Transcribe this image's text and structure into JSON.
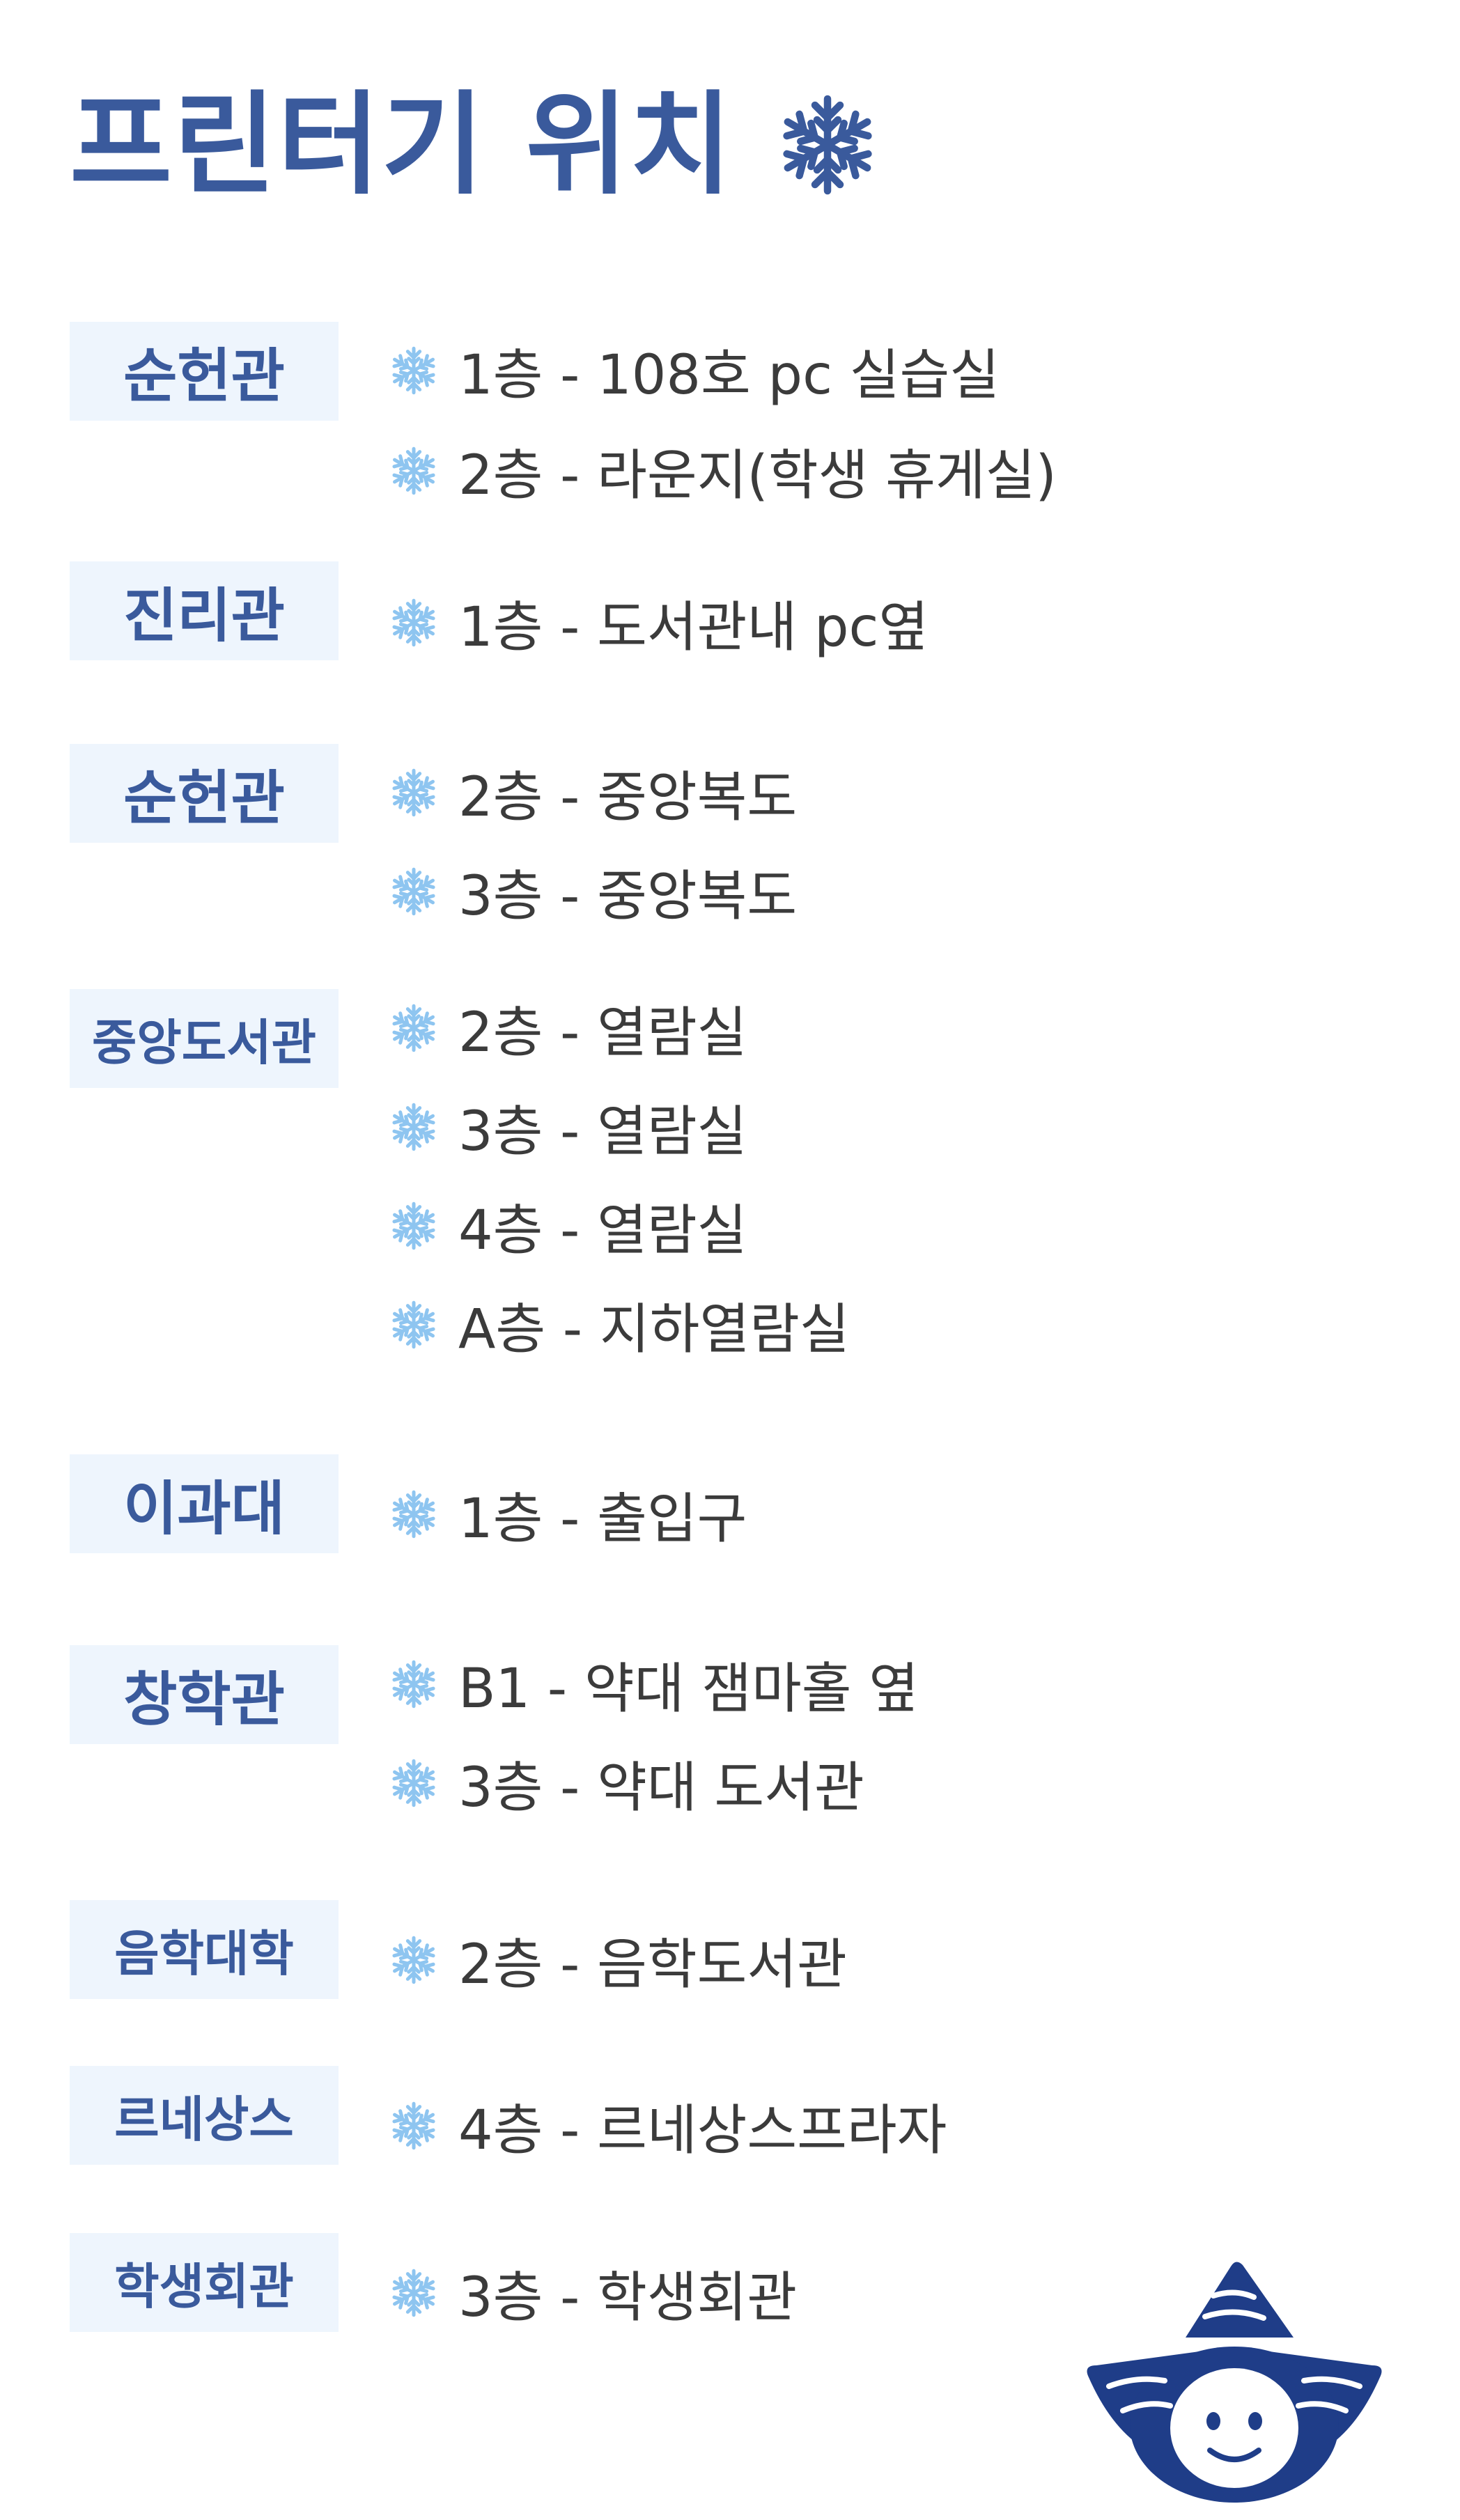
{
  "header": {
    "title": "프린터기 위치"
  },
  "icons": {
    "title": "snowflake-icon",
    "bullet": "snowflake-icon",
    "mascot": "mascot-illustration"
  },
  "colors": {
    "title": "#3a5a9c",
    "building_bg": "#eef5fd",
    "item_text": "#3b3b3b",
    "bullet": "#8ec5f0",
    "mascot": "#1f3d88"
  },
  "sections": [
    {
      "building": "순헌관",
      "items": [
        "1층 - 108호 pc 실습실",
        "2층 - 라운지(학생 휴게실)"
      ]
    },
    {
      "building": "진리관",
      "items": [
        "1층 - 도서관내 pc옆"
      ]
    },
    {
      "building": "순헌관",
      "items": [
        "2층 - 중앙복도",
        "3층 - 중앙복도"
      ]
    },
    {
      "building": "중앙도서관",
      "items": [
        "2층 - 열람실",
        "3층 - 열람실",
        "4층 - 열람실",
        "A층 - 지하열람실"
      ]
    },
    {
      "building": "이과대",
      "items": [
        "1층 - 출입구"
      ]
    },
    {
      "building": "창학관",
      "items": [
        "B1 - 약대 잼마홀 옆",
        "3층 - 약대 도서관"
      ]
    },
    {
      "building": "음학대학",
      "items": [
        "2층 - 음학도서관"
      ]
    },
    {
      "building": "르네상스",
      "items": [
        "4층 - 르네상스프라자"
      ]
    },
    {
      "building": "학생회관",
      "items": [
        "3층 - 학생회관"
      ]
    }
  ]
}
